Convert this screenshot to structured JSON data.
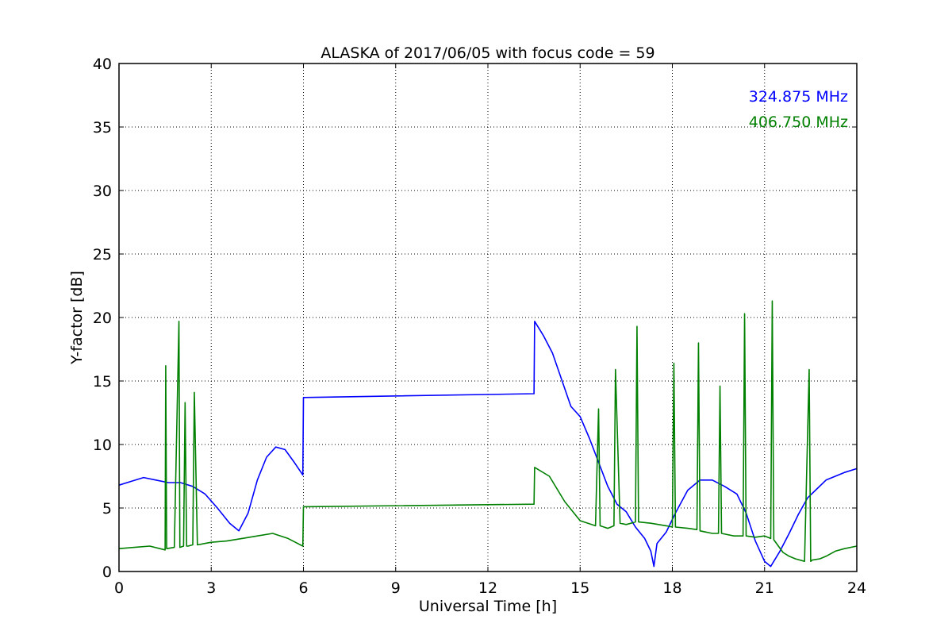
{
  "chart_data": {
    "type": "line",
    "title": "ALASKA of 2017/06/05 with focus code = 59",
    "xlabel": "Universal Time [h]",
    "ylabel": "Y-factor [dB]",
    "xlim": [
      0,
      24
    ],
    "ylim": [
      0,
      40
    ],
    "xticks": [
      0,
      3,
      6,
      9,
      12,
      15,
      18,
      21,
      24
    ],
    "yticks": [
      0,
      5,
      10,
      15,
      20,
      25,
      30,
      35,
      40
    ],
    "grid": true,
    "legend": "top-right",
    "series": [
      {
        "name": "324.875 MHz",
        "color": "#0000ff",
        "x": [
          0,
          0.4,
          0.8,
          1.2,
          1.6,
          2.0,
          2.4,
          2.8,
          3.2,
          3.6,
          3.9,
          4.2,
          4.5,
          4.8,
          5.1,
          5.4,
          5.7,
          5.98,
          6.0,
          13.5,
          13.52,
          13.8,
          14.1,
          14.4,
          14.7,
          15.0,
          15.3,
          15.6,
          15.9,
          16.2,
          16.5,
          16.8,
          17.1,
          17.3,
          17.4,
          17.5,
          17.8,
          18.1,
          18.5,
          18.9,
          19.3,
          19.7,
          20.1,
          20.4,
          20.7,
          21.0,
          21.2,
          21.5,
          21.8,
          22.1,
          22.4,
          22.7,
          23.0,
          23.3,
          23.6,
          24.0
        ],
        "y": [
          6.8,
          7.1,
          7.4,
          7.2,
          7.0,
          7.0,
          6.7,
          6.1,
          5.0,
          3.8,
          3.2,
          4.6,
          7.2,
          9.0,
          9.8,
          9.6,
          8.6,
          7.6,
          13.7,
          14.0,
          19.7,
          18.6,
          17.2,
          15.1,
          13.0,
          12.2,
          10.5,
          8.6,
          6.7,
          5.3,
          4.7,
          3.5,
          2.6,
          1.6,
          0.4,
          2.2,
          3.1,
          4.6,
          6.4,
          7.2,
          7.2,
          6.7,
          6.1,
          4.6,
          2.4,
          0.8,
          0.4,
          1.6,
          3.0,
          4.5,
          5.8,
          6.5,
          7.2,
          7.5,
          7.8,
          8.1
        ]
      },
      {
        "name": "406.750 MHz",
        "color": "#008000",
        "x": [
          0,
          0.5,
          1.0,
          1.5,
          1.52,
          1.55,
          1.8,
          1.95,
          1.98,
          2.1,
          2.15,
          2.2,
          2.25,
          2.4,
          2.45,
          2.55,
          3.0,
          3.5,
          4.0,
          4.5,
          5.0,
          5.5,
          5.98,
          6.0,
          13.5,
          13.52,
          14.0,
          14.5,
          15.0,
          15.5,
          15.6,
          15.65,
          15.9,
          16.1,
          16.15,
          16.3,
          16.5,
          16.8,
          16.85,
          16.9,
          17.3,
          17.8,
          18.0,
          18.05,
          18.1,
          18.5,
          18.8,
          18.85,
          18.9,
          19.3,
          19.5,
          19.55,
          19.6,
          20.0,
          20.3,
          20.35,
          20.4,
          20.7,
          21.0,
          21.2,
          21.25,
          21.3,
          21.6,
          21.8,
          22.0,
          22.3,
          22.45,
          22.5,
          22.55,
          22.8,
          23.0,
          23.3,
          23.6,
          24.0
        ],
        "y": [
          1.8,
          1.9,
          2.0,
          1.7,
          16.2,
          1.8,
          1.9,
          19.7,
          1.9,
          2.0,
          13.3,
          2.0,
          2.0,
          2.1,
          14.1,
          2.1,
          2.3,
          2.4,
          2.6,
          2.8,
          3.0,
          2.6,
          2.0,
          5.1,
          5.3,
          8.2,
          7.5,
          5.5,
          4.0,
          3.6,
          12.8,
          3.6,
          3.4,
          3.6,
          15.9,
          3.8,
          3.7,
          3.9,
          19.3,
          3.9,
          3.8,
          3.6,
          3.5,
          16.4,
          3.5,
          3.4,
          3.3,
          18.0,
          3.2,
          3.0,
          3.0,
          14.6,
          3.0,
          2.8,
          2.8,
          20.3,
          2.8,
          2.7,
          2.8,
          2.6,
          21.3,
          2.5,
          1.5,
          1.2,
          1.0,
          0.8,
          15.9,
          0.8,
          0.9,
          1.0,
          1.2,
          1.6,
          1.8,
          2.0
        ]
      }
    ]
  }
}
